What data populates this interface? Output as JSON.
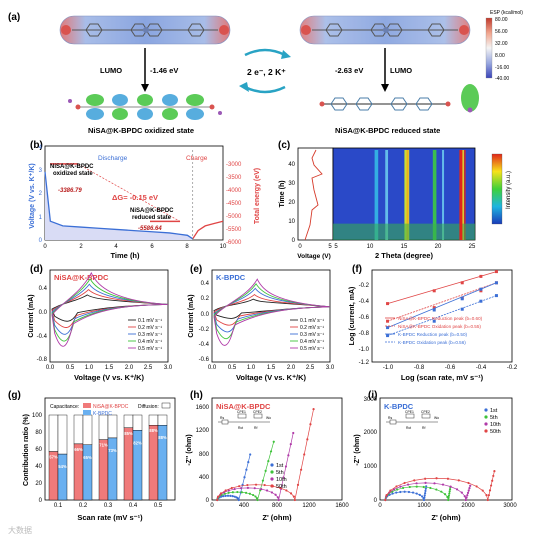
{
  "panels": {
    "a": {
      "label": "(a)",
      "colorbar": {
        "title": "ESP (kcal/mol)",
        "ticks": [
          "80.00",
          "56.00",
          "32.00",
          "8.00",
          "-16.00",
          "-40.00"
        ]
      },
      "left_lumo": "LUMO",
      "left_energy": "-1.46 eV",
      "left_caption": "NiSA@K-BPDC oxidized state",
      "transfer": "2 e⁻, 2 K⁺",
      "right_energy": "-2.63 eV",
      "right_lumo": "LUMO",
      "right_caption": "NiSA@K-BPDC reduced state"
    },
    "b": {
      "label": "(b)",
      "ylabel_left": "Voltage (V vs. K⁺/K)",
      "ylabel_right": "Total energy (eV)",
      "xlabel": "Time (h)",
      "discharge": "Discharge",
      "charge": "Charge",
      "ox_label_1": "NiSA@K-BPDC",
      "ox_label_2": "oxidized state",
      "ox_energy": "-3386.79",
      "delta_g": "ΔG= -0.15 eV",
      "red_label_1": "NiSA@K-BPDC",
      "red_label_2": "reduced state",
      "red_energy": "-5586.64",
      "xticks": [
        "0",
        "2",
        "4",
        "6",
        "8",
        "10"
      ],
      "yticks_left": [
        "0",
        "1",
        "2",
        "3",
        "4"
      ],
      "yticks_right": [
        "-3000",
        "-3500",
        "-4000",
        "-4500",
        "-5000",
        "-5500",
        "-6000"
      ]
    },
    "c": {
      "label": "(c)",
      "ylabel": "Time (h)",
      "xlabel_left": "Voltage (V)",
      "xlabel_right": "2 Theta (degree)",
      "xticks_left": [
        "0",
        "5"
      ],
      "xticks_right": [
        "5",
        "10",
        "15",
        "20",
        "25"
      ],
      "yticks": [
        "0",
        "10",
        "20",
        "30",
        "40"
      ],
      "colorbar_label": "Intensity (a.u.)"
    },
    "d": {
      "label": "(d)",
      "title": "NiSA@K-BPDC",
      "xlabel": "Voltage (V vs. K⁺/K)",
      "ylabel": "Current (mA)",
      "xticks": [
        "0.0",
        "0.5",
        "1.0",
        "1.5",
        "2.0",
        "2.5",
        "3.0"
      ],
      "yticks": [
        "0.4",
        "0.0",
        "-0.4",
        "-0.8"
      ],
      "legend": [
        "0.1 mV s⁻¹",
        "0.2 mV s⁻¹",
        "0.3 mV s⁻¹",
        "0.4 mV s⁻¹",
        "0.5 mV s⁻¹"
      ]
    },
    "e": {
      "label": "(e)",
      "title": "K-BPDC",
      "xlabel": "Voltage (V vs. K⁺/K)",
      "ylabel": "Current (mA)",
      "xticks": [
        "0.0",
        "0.5",
        "1.0",
        "1.5",
        "2.0",
        "2.5",
        "3.0"
      ],
      "yticks": [
        "0.4",
        "0.2",
        "0.0",
        "-0.2",
        "-0.4",
        "-0.6"
      ],
      "legend": [
        "0.1 mV s⁻¹",
        "0.2 mV s⁻¹",
        "0.3 mV s⁻¹",
        "0.4 mV s⁻¹",
        "0.5 mV s⁻¹"
      ]
    },
    "f": {
      "label": "(f)",
      "xlabel": "Log (scan rate, mV s⁻¹)",
      "ylabel": "Log (current, mA)",
      "xticks": [
        "-1.0",
        "-0.8",
        "-0.6",
        "-0.4",
        "-0.2"
      ],
      "yticks": [
        "-0.2",
        "-0.4",
        "-0.6",
        "-0.8",
        "-1.0",
        "-1.2"
      ],
      "legend": [
        "NiSA@K-BPDC Reduction peak  (b=0.60)",
        "NiSA@K-BPDC Oxidation peak  (b=0.55)",
        "K-BPDC Reduction peak  (b=0.50)",
        "K-BPDC  Oxidation peak  (b=0.56)"
      ]
    },
    "g": {
      "label": "(g)",
      "xlabel": "Scan rate (mV s⁻¹)",
      "ylabel": "Contribution ratio (%)",
      "legend_capacitance": "Capacitance:",
      "legend_diffusion": "Diffusion:",
      "legend_s1": "NiSA@K-BPDC",
      "legend_s2": "K-BPDC",
      "yticks": [
        "0",
        "20",
        "40",
        "60",
        "80",
        "100"
      ],
      "ylim_top": "120"
    },
    "h": {
      "label": "(h)",
      "title": "NiSA@K-BPDC",
      "xlabel": "Z' (ohm)",
      "ylabel": "-Z'' (ohm)",
      "xticks": [
        "0",
        "400",
        "800",
        "1200",
        "1600"
      ],
      "yticks": [
        "0",
        "400",
        "800",
        "1200",
        "1600"
      ],
      "legend": [
        "1st",
        "5th",
        "10th",
        "50th"
      ],
      "circuit": [
        "Rs",
        "CPE1",
        "CPE2",
        "Rct",
        "Rf",
        "Wo"
      ]
    },
    "i": {
      "label": "(i)",
      "title": "K-BPDC",
      "xlabel": "Z' (ohm)",
      "ylabel": "-Z'' (ohm)",
      "xticks": [
        "0",
        "1000",
        "2000",
        "3000"
      ],
      "yticks": [
        "0",
        "1000",
        "2000",
        "3000"
      ],
      "legend": [
        "1st",
        "5th",
        "10th",
        "50th"
      ],
      "circuit": [
        "Rs",
        "CPE1",
        "CPE2",
        "Rct",
        "Rf",
        "Wo"
      ]
    }
  },
  "watermark": "大数据",
  "chart_data": [
    {
      "panel": "b",
      "type": "line",
      "series": [
        {
          "name": "Discharge",
          "x": [
            0,
            0.3,
            1,
            2,
            3,
            4,
            5,
            6,
            7,
            7.5,
            8,
            8.3
          ],
          "y": [
            2.9,
            0.8,
            0.6,
            0.55,
            0.5,
            0.45,
            0.4,
            0.35,
            0.3,
            0.25,
            0.2,
            0.05
          ]
        },
        {
          "name": "Charge",
          "x": [
            8.3,
            8.6,
            9,
            9.5,
            10
          ],
          "y": [
            0.05,
            0.4,
            0.6,
            0.7,
            0.8
          ]
        }
      ],
      "energies": {
        "oxidized": -3386.79,
        "reduced": -5586.64
      },
      "xlim": [
        0,
        10
      ],
      "ylim_left": [
        0,
        4
      ],
      "ylim_right": [
        -6300,
        -2700
      ]
    },
    {
      "panel": "d",
      "type": "line",
      "scan_rates": [
        0.1,
        0.2,
        0.3,
        0.4,
        0.5
      ],
      "reduction_peak_V": [
        0.45,
        0.42,
        0.38,
        0.36,
        0.33
      ],
      "reduction_peak_mA": [
        -0.3,
        -0.42,
        -0.55,
        -0.68,
        -0.78
      ],
      "oxidation_peak_V": [
        0.95,
        0.98,
        1.0,
        1.02,
        1.05
      ],
      "oxidation_peak_mA": [
        0.18,
        0.27,
        0.36,
        0.45,
        0.55
      ],
      "xlim": [
        0,
        3
      ],
      "ylim": [
        -0.95,
        0.6
      ]
    },
    {
      "panel": "e",
      "type": "line",
      "scan_rates": [
        0.1,
        0.2,
        0.3,
        0.4,
        0.5
      ],
      "reduction_peak_V": [
        0.5,
        0.45,
        0.4,
        0.36,
        0.32
      ],
      "reduction_peak_mA": [
        -0.15,
        -0.25,
        -0.35,
        -0.45,
        -0.55
      ],
      "oxidation_peak_V": [
        1.05,
        1.08,
        1.1,
        1.12,
        1.15
      ],
      "oxidation_peak_mA": [
        0.12,
        0.18,
        0.26,
        0.32,
        0.38
      ],
      "xlim": [
        0,
        3
      ],
      "ylim": [
        -0.7,
        0.5
      ]
    },
    {
      "panel": "f",
      "type": "scatter",
      "x": [
        -1.0,
        -0.7,
        -0.52,
        -0.4,
        -0.3
      ],
      "series": [
        {
          "name": "NiSA@K-BPDC Reduction peak",
          "values": [
            -0.52,
            -0.36,
            -0.26,
            -0.18,
            -0.12
          ]
        },
        {
          "name": "NiSA@K-BPDC Oxidation peak",
          "values": [
            -0.74,
            -0.57,
            -0.45,
            -0.36,
            -0.26
          ]
        },
        {
          "name": "K-BPDC Reduction peak",
          "values": [
            -0.82,
            -0.6,
            -0.46,
            -0.34,
            -0.26
          ]
        },
        {
          "name": "K-BPDC Oxidation peak",
          "values": [
            -0.92,
            -0.74,
            -0.59,
            -0.49,
            -0.42
          ]
        }
      ],
      "xlim": [
        -1.1,
        -0.2
      ],
      "ylim": [
        -1.25,
        -0.1
      ]
    },
    {
      "panel": "g",
      "type": "bar",
      "categories": [
        "0.1",
        "0.2",
        "0.3",
        "0.4",
        "0.5"
      ],
      "series": [
        {
          "name": "NiSA@K-BPDC",
          "values": [
            57,
            66,
            71,
            85,
            88
          ]
        },
        {
          "name": "K-BPDC",
          "values": [
            54,
            65,
            73,
            82,
            88
          ]
        }
      ],
      "bar_labels_s1": [
        "57%",
        "66%",
        "71%",
        "85%",
        "88%"
      ],
      "bar_labels_s2": [
        "54%",
        "65%",
        "73%",
        "82%",
        "88%"
      ],
      "ylim": [
        0,
        120
      ]
    },
    {
      "panel": "h",
      "type": "scatter",
      "series": [
        {
          "name": "1st",
          "semicircle_end": 330,
          "tail_x": 470,
          "tail_y": 780
        },
        {
          "name": "5th",
          "semicircle_end": 560,
          "tail_x": 760,
          "tail_y": 1000
        },
        {
          "name": "10th",
          "semicircle_end": 820,
          "tail_x": 1000,
          "tail_y": 1150
        },
        {
          "name": "50th",
          "semicircle_end": 1020,
          "tail_x": 1250,
          "tail_y": 1560
        }
      ],
      "xlim": [
        0,
        1600
      ],
      "ylim": [
        0,
        1750
      ]
    },
    {
      "panel": "i",
      "type": "scatter",
      "series": [
        {
          "name": "1st",
          "semicircle_end": 1000,
          "tail_x": 1050,
          "tail_y": 400
        },
        {
          "name": "5th",
          "semicircle_end": 1550,
          "tail_x": 1600,
          "tail_y": 380
        },
        {
          "name": "10th",
          "semicircle_end": 1950,
          "tail_x": 2050,
          "tail_y": 420
        },
        {
          "name": "50th",
          "semicircle_end": 2450,
          "tail_x": 2600,
          "tail_y": 850
        }
      ],
      "xlim": [
        0,
        3000
      ],
      "ylim": [
        0,
        3000
      ]
    }
  ]
}
